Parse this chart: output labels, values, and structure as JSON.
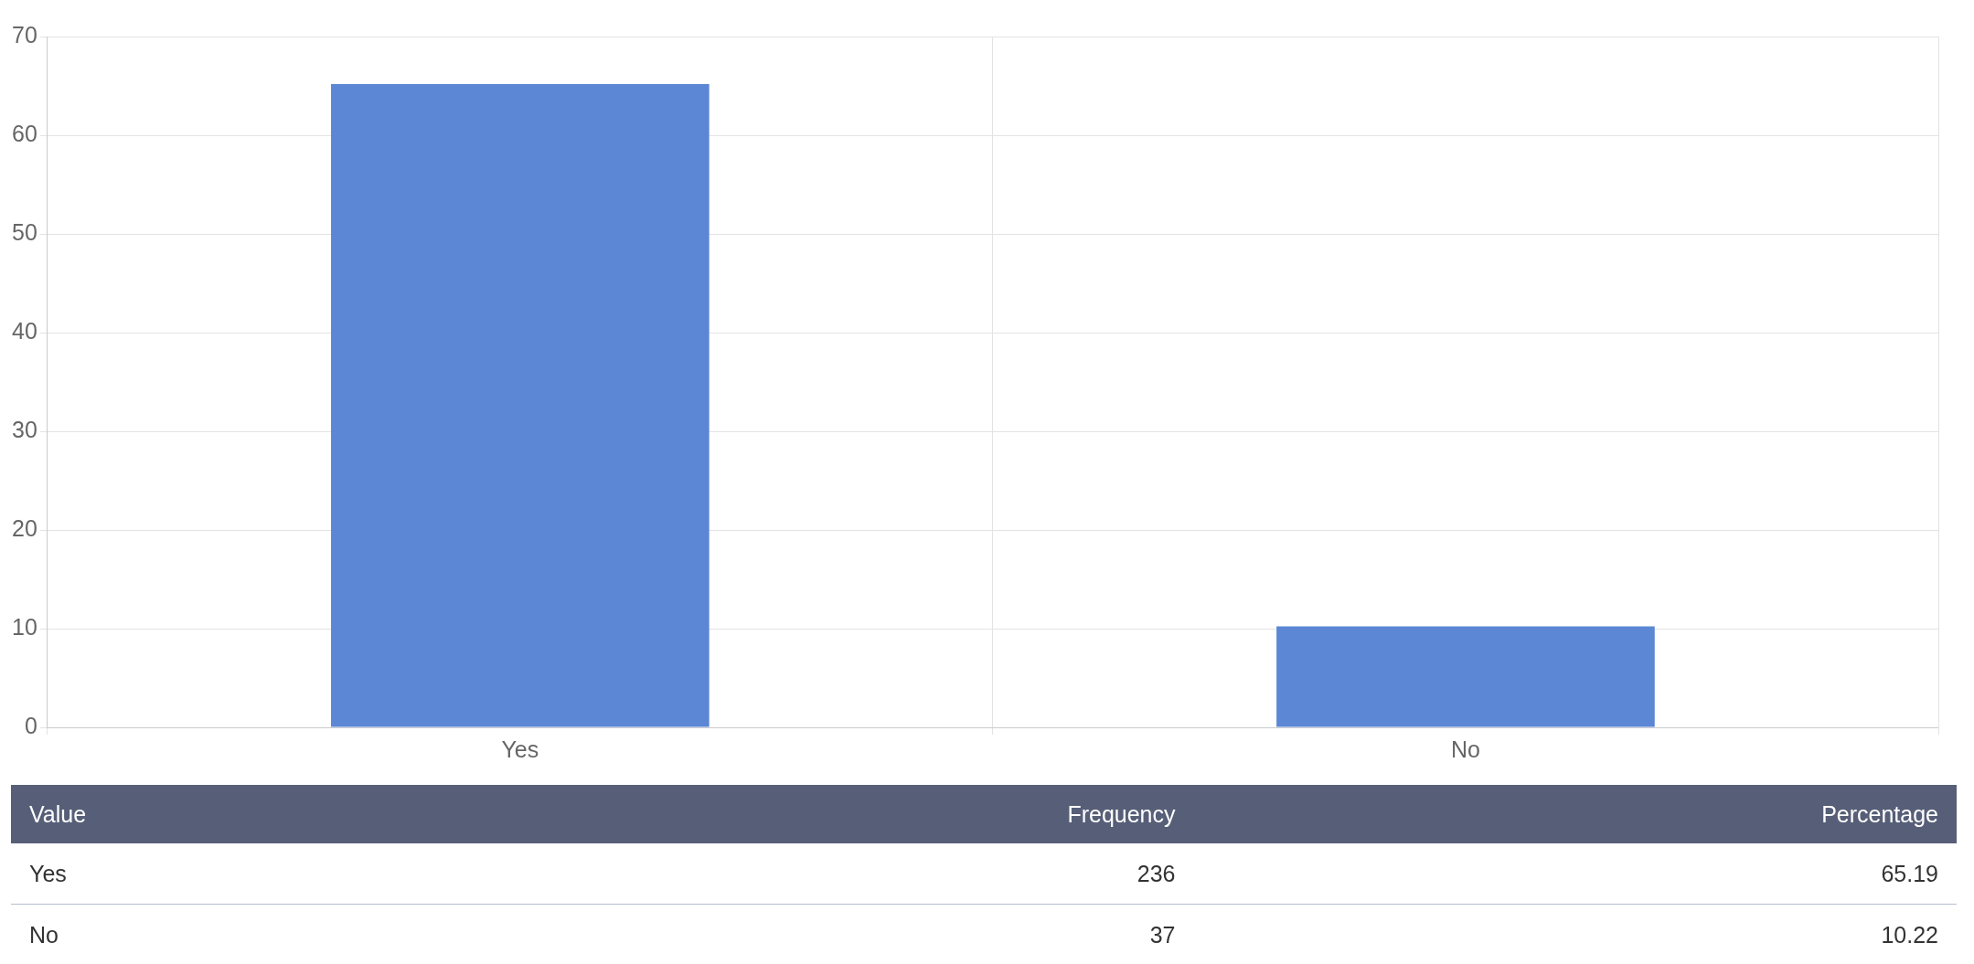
{
  "chart_data": [
    {
      "type": "bar",
      "categories": [
        "Yes",
        "No"
      ],
      "values": [
        65.19,
        10.22
      ],
      "color": "#5b87d4",
      "ylim": [
        0,
        70
      ],
      "yticks": [
        0,
        10,
        20,
        30,
        40,
        50,
        60,
        70
      ],
      "grid": true,
      "legend": false
    },
    {
      "type": "other",
      "xlabel": "Value",
      "data_labels": true,
      "categories": [
        "Yes",
        "No"
      ],
      "series": [
        {
          "name": "Frequency",
          "values": [
            236,
            37
          ]
        },
        {
          "name": "Percentage",
          "values": [
            65.19,
            10.22
          ]
        }
      ]
    }
  ]
}
